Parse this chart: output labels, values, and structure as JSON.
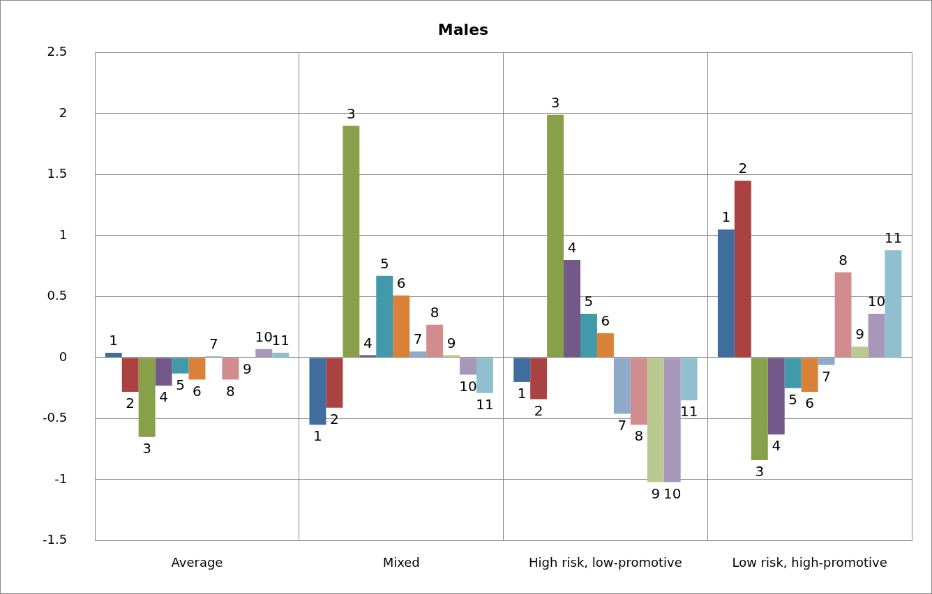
{
  "chart_data": {
    "type": "bar",
    "title": "Males",
    "categories": [
      "Average",
      "Mixed",
      "High risk, low-promotive",
      "Low risk, high-promotive"
    ],
    "series": [
      {
        "name": "1",
        "color": "#3f6d9e",
        "values": [
          0.04,
          -0.55,
          -0.2,
          1.05
        ]
      },
      {
        "name": "2",
        "color": "#a94240",
        "values": [
          -0.28,
          -0.41,
          -0.34,
          1.45
        ]
      },
      {
        "name": "3",
        "color": "#88a04a",
        "values": [
          -0.65,
          1.9,
          1.99,
          -0.84
        ]
      },
      {
        "name": "4",
        "color": "#72598a",
        "values": [
          -0.23,
          0.02,
          0.8,
          -0.63
        ]
      },
      {
        "name": "5",
        "color": "#4299a9",
        "values": [
          -0.13,
          0.67,
          0.36,
          -0.25
        ]
      },
      {
        "name": "6",
        "color": "#d98139",
        "values": [
          -0.18,
          0.51,
          0.2,
          -0.28
        ]
      },
      {
        "name": "7",
        "color": "#8fa9c9",
        "values": [
          0.01,
          0.05,
          -0.46,
          -0.06
        ]
      },
      {
        "name": "8",
        "color": "#d18d8d",
        "values": [
          -0.18,
          0.27,
          -0.55,
          0.7
        ]
      },
      {
        "name": "9",
        "color": "#b9c98f",
        "values": [
          0,
          0.02,
          -1.02,
          0.09
        ]
      },
      {
        "name": "10",
        "color": "#a797b9",
        "values": [
          0.07,
          -0.14,
          -1.02,
          0.36
        ]
      },
      {
        "name": "11",
        "color": "#90bfd0",
        "values": [
          0.04,
          -0.29,
          -0.35,
          0.88
        ]
      }
    ],
    "ylim": [
      -1.5,
      2.5
    ],
    "yticks": [
      -1.5,
      -1,
      -0.5,
      0,
      0.5,
      1,
      1.5,
      2,
      2.5
    ],
    "grid": true,
    "legend": false
  }
}
